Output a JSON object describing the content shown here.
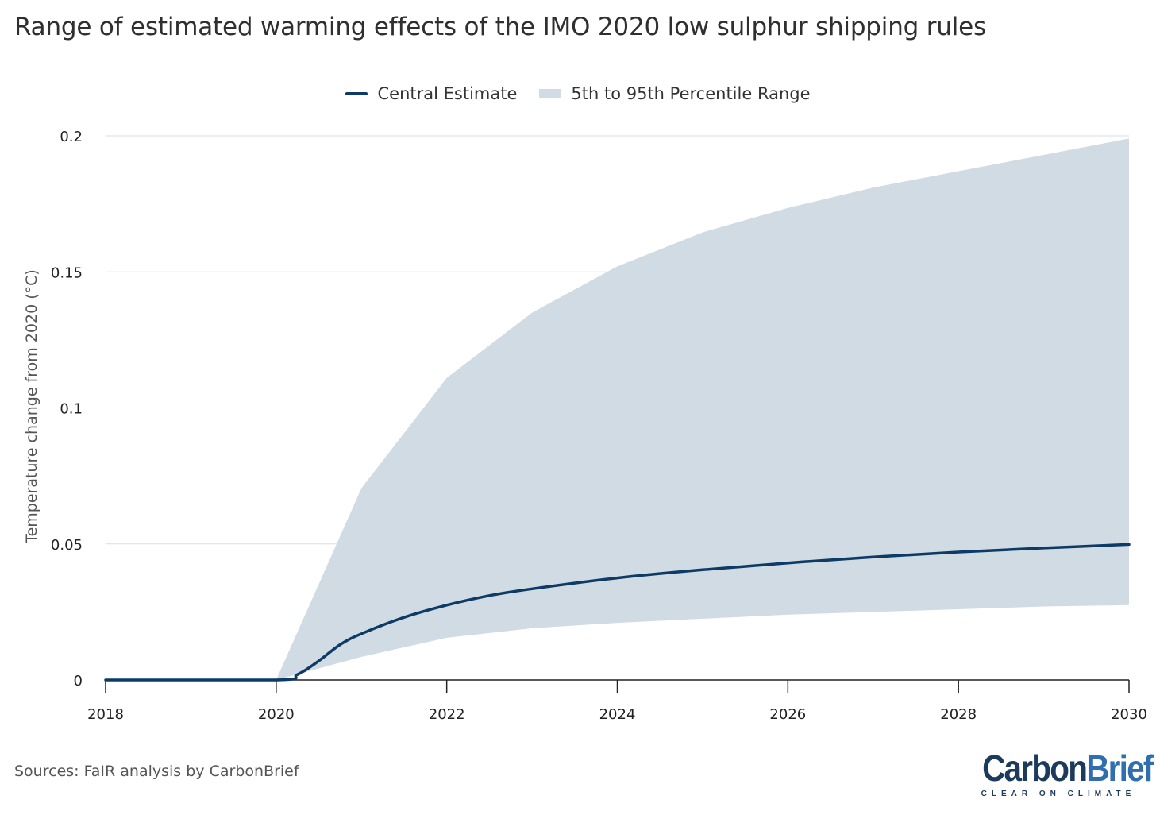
{
  "title": "Range of estimated warming effects of the IMO 2020 low sulphur shipping rules",
  "source": "Sources: FaIR analysis by CarbonBrief",
  "logo": {
    "part1": "Carbon",
    "part2": "Brief",
    "tagline": "CLEAR ON CLIMATE"
  },
  "colors": {
    "central": "#0e3a66",
    "range": "#d0dbe4",
    "grid": "#d9dde2",
    "axis": "#222222",
    "logo_dark": "#1b3a5c",
    "logo_accent": "#2f6fb0"
  },
  "chart_data": {
    "type": "area",
    "title": "Range of estimated warming effects of the IMO 2020 low sulphur shipping rules",
    "xlabel": "",
    "ylabel": "Temperature change from 2020 (°C)",
    "xlim": [
      2018,
      2030
    ],
    "ylim": [
      0,
      0.2
    ],
    "x_ticks": [
      "2018",
      "2020",
      "2022",
      "2024",
      "2026",
      "2028",
      "2030"
    ],
    "y_ticks": [
      "0",
      "0.05",
      "0.1",
      "0.15",
      "0.2"
    ],
    "grid": true,
    "legend_position": "top-center",
    "series": [
      {
        "name": "Central Estimate",
        "type": "line",
        "x": [
          2018,
          2020,
          2020.25,
          2020.5,
          2020.75,
          2021,
          2021.5,
          2022,
          2022.5,
          2023,
          2024,
          2025,
          2026,
          2027,
          2028,
          2029,
          2030
        ],
        "values": [
          0,
          0,
          0.002,
          0.007,
          0.013,
          0.017,
          0.023,
          0.0275,
          0.031,
          0.0335,
          0.0375,
          0.0405,
          0.043,
          0.0452,
          0.047,
          0.0485,
          0.0498
        ]
      },
      {
        "name": "5th to 95th Percentile Range",
        "type": "band",
        "x": [
          2018,
          2020,
          2021,
          2022,
          2023,
          2024,
          2025,
          2026,
          2027,
          2028,
          2029,
          2030
        ],
        "lower": [
          0,
          0,
          0.0085,
          0.0155,
          0.019,
          0.021,
          0.0225,
          0.024,
          0.025,
          0.026,
          0.027,
          0.0275
        ],
        "upper": [
          0,
          0,
          0.0705,
          0.111,
          0.135,
          0.152,
          0.1645,
          0.1735,
          0.181,
          0.187,
          0.193,
          0.199
        ]
      }
    ]
  }
}
